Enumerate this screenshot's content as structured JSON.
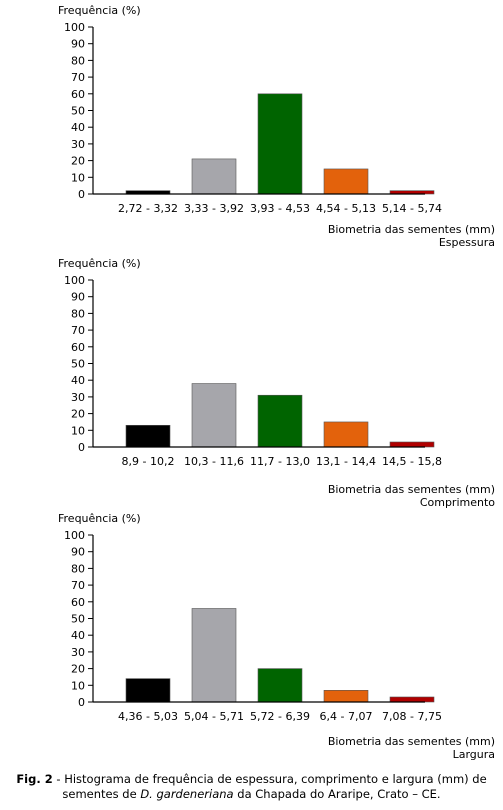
{
  "chart_data": [
    {
      "type": "bar",
      "ylabel": "Frequência (%)",
      "xlabel": "Biometria das sementes (mm)",
      "subtitle": "Espessura",
      "ylim": [
        0,
        100
      ],
      "yticks": [
        0,
        10,
        20,
        30,
        40,
        50,
        60,
        70,
        80,
        90,
        100
      ],
      "categories": [
        "2,72 - 3,32",
        "3,33 - 3,92",
        "3,93 - 4,53",
        "4,54 - 5,13",
        "5,14 - 5,74"
      ],
      "values": [
        2,
        21,
        60,
        15,
        2
      ],
      "colors": [
        "#000000",
        "#a6a6ab",
        "#006400",
        "#e3620c",
        "#b00000"
      ]
    },
    {
      "type": "bar",
      "ylabel": "Frequência (%)",
      "xlabel": "Biometria das sementes (mm)",
      "subtitle": "Comprimento",
      "ylim": [
        0,
        100
      ],
      "yticks": [
        0,
        10,
        20,
        30,
        40,
        50,
        60,
        70,
        80,
        90,
        100
      ],
      "categories": [
        "8,9 - 10,2",
        "10,3 - 11,6",
        "11,7 - 13,0",
        "13,1 - 14,4",
        "14,5 - 15,8"
      ],
      "values": [
        13,
        38,
        31,
        15,
        3
      ],
      "colors": [
        "#000000",
        "#a6a6ab",
        "#006400",
        "#e3620c",
        "#b00000"
      ]
    },
    {
      "type": "bar",
      "ylabel": "Frequência (%)",
      "xlabel": "Biometria das sementes (mm)",
      "subtitle": "Largura",
      "ylim": [
        0,
        100
      ],
      "yticks": [
        0,
        10,
        20,
        30,
        40,
        50,
        60,
        70,
        80,
        90,
        100
      ],
      "categories": [
        "4,36 - 5,03",
        "5,04 - 5,71",
        "5,72 - 6,39",
        "6,4 - 7,07",
        "7,08 - 7,75"
      ],
      "values": [
        14,
        56,
        20,
        7,
        3
      ],
      "colors": [
        "#000000",
        "#a6a6ab",
        "#006400",
        "#e3620c",
        "#b00000"
      ]
    }
  ],
  "caption": {
    "label": "Fig. 2",
    "text_before": " - Histograma de frequência de espessura, comprimento e largura (mm) de sementes de ",
    "species": "D. gardeneriana",
    "text_after": " da Chapada do Araripe, Crato – CE."
  }
}
